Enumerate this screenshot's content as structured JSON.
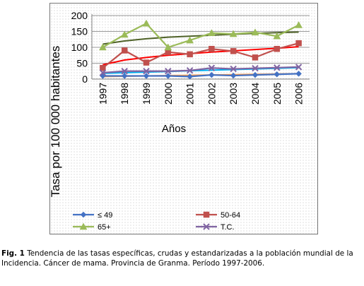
{
  "chart_data": {
    "type": "line",
    "ylabel": "Tasa por 100 000 habitantes",
    "xlabel": "Años",
    "categories": [
      "1997",
      "1998",
      "1999",
      "2000",
      "2001",
      "2002",
      "2003",
      "2004",
      "2005",
      "2006"
    ],
    "ylim": [
      0,
      200
    ],
    "yticks": [
      "0",
      "50",
      "100",
      "150",
      "200"
    ],
    "grid": true,
    "legend_position": "bottom",
    "series": [
      {
        "name": "≤ 49",
        "color": "#4472C4",
        "marker": "diamond",
        "values": [
          10,
          10,
          10,
          10,
          8,
          13,
          11,
          13,
          15,
          17
        ]
      },
      {
        "name": "50-64",
        "color": "#C0504D",
        "marker": "square",
        "values": [
          35,
          90,
          52,
          85,
          78,
          95,
          88,
          68,
          95,
          113
        ]
      },
      {
        "name": "65+",
        "color": "#9BBB59",
        "marker": "triangle",
        "values": [
          100,
          140,
          175,
          100,
          122,
          145,
          142,
          147,
          135,
          170
        ]
      },
      {
        "name": "T.C.",
        "color": "#8064A2",
        "marker": "x",
        "values": [
          20,
          25,
          25,
          25,
          27,
          35,
          32,
          34,
          36,
          38
        ]
      }
    ],
    "trendlines": [
      {
        "series": "≤ 49",
        "color": "#F79646",
        "values": [
          8,
          9,
          10,
          11,
          12,
          13,
          14,
          15,
          16,
          17
        ]
      },
      {
        "series": "50-64",
        "color": "#FF0000",
        "values": [
          45,
          60,
          68,
          75,
          80,
          85,
          89,
          93,
          97,
          102
        ]
      },
      {
        "series": "65+",
        "color": "#4F6228",
        "values": [
          110,
          120,
          127,
          132,
          135,
          138,
          141,
          144,
          146,
          148
        ]
      },
      {
        "series": "T.C.",
        "color": "#00B0F0",
        "values": [
          18,
          20,
          22,
          24,
          26,
          28,
          30,
          32,
          34,
          36
        ]
      }
    ]
  },
  "caption": {
    "label": "Fig. 1",
    "text": " Tendencia de las tasas específicas, crudas y estandarizadas a la población mundial de la Incidencia. Cáncer de mama. Provincia de Granma. Período 1997-2006."
  }
}
